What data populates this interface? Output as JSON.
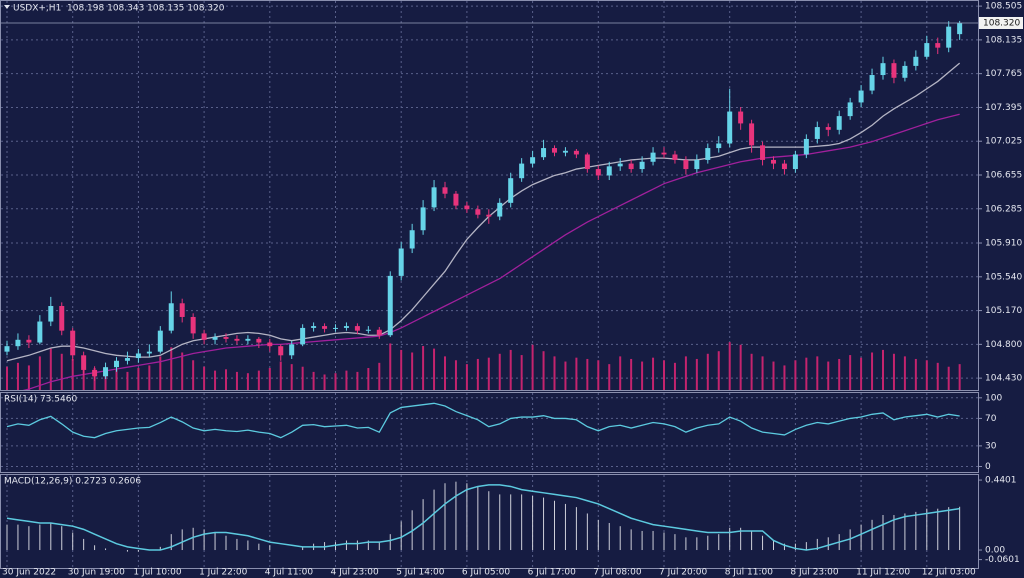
{
  "chart_data": {
    "type": "candlestick",
    "title": "USDX+,H1  108.198 108.343 108.135 108.320",
    "categories": [
      "30 Jun 2022",
      null,
      null,
      null,
      null,
      null,
      "30 Jun 19:00",
      null,
      null,
      null,
      null,
      null,
      "1 Jul 10:00",
      null,
      null,
      null,
      null,
      null,
      "1 Jul 22:00",
      null,
      null,
      null,
      null,
      null,
      "4 Jul 11:00",
      null,
      null,
      null,
      null,
      null,
      "4 Jul 23:00",
      null,
      null,
      null,
      null,
      null,
      "5 Jul 14:00",
      null,
      null,
      null,
      null,
      null,
      "6 Jul 05:00",
      null,
      null,
      null,
      null,
      null,
      "6 Jul 17:00",
      null,
      null,
      null,
      null,
      null,
      "7 Jul 08:00",
      null,
      null,
      null,
      null,
      null,
      "7 Jul 20:00",
      null,
      null,
      null,
      null,
      null,
      "8 Jul 11:00",
      null,
      null,
      null,
      null,
      null,
      "8 Jul 23:00",
      null,
      null,
      null,
      null,
      null,
      "11 Jul 12:00",
      null,
      null,
      null,
      null,
      null,
      "12 Jul 03:00",
      null,
      null,
      null
    ],
    "open": [
      104.72,
      104.78,
      104.85,
      104.82,
      105.05,
      105.22,
      104.95,
      104.68,
      104.52,
      104.45,
      104.55,
      104.62,
      104.65,
      104.7,
      104.72,
      104.95,
      105.25,
      105.1,
      104.92,
      104.85,
      104.88,
      104.86,
      104.84,
      104.86,
      104.82,
      104.78,
      104.68,
      104.8,
      104.98,
      105.0,
      104.97,
      104.98,
      105.0,
      104.95,
      104.96,
      104.9,
      105.55,
      105.85,
      106.05,
      106.3,
      106.52,
      106.45,
      106.32,
      106.28,
      106.22,
      106.2,
      106.35,
      106.62,
      106.78,
      106.85,
      106.95,
      106.9,
      106.92,
      106.88,
      106.72,
      106.65,
      106.75,
      106.78,
      106.72,
      106.8,
      106.9,
      106.88,
      106.82,
      106.72,
      106.82,
      106.95,
      107.0,
      107.35,
      107.22,
      106.98,
      106.82,
      106.78,
      106.72,
      106.88,
      107.05,
      107.18,
      107.15,
      107.3,
      107.45,
      107.58,
      107.75,
      107.88,
      107.72,
      107.85,
      107.95,
      108.1,
      108.05,
      108.198
    ],
    "high": [
      104.84,
      104.92,
      104.9,
      105.12,
      105.32,
      105.26,
      104.98,
      104.72,
      104.56,
      104.6,
      104.66,
      104.72,
      104.75,
      104.8,
      105.0,
      105.38,
      105.3,
      105.14,
      104.96,
      104.92,
      104.92,
      104.9,
      104.9,
      104.88,
      104.86,
      104.8,
      104.84,
      105.02,
      105.04,
      105.03,
      105.02,
      105.04,
      105.03,
      105.0,
      104.99,
      105.6,
      105.92,
      106.12,
      106.38,
      106.6,
      106.58,
      106.48,
      106.36,
      106.32,
      106.28,
      106.4,
      106.68,
      106.84,
      106.92,
      107.04,
      106.98,
      106.96,
      106.94,
      106.9,
      106.76,
      106.8,
      106.84,
      106.82,
      106.86,
      106.96,
      106.96,
      106.92,
      106.86,
      106.88,
      107.0,
      107.08,
      107.6,
      107.4,
      107.26,
      107.02,
      106.86,
      106.82,
      106.92,
      107.1,
      107.24,
      107.22,
      107.36,
      107.5,
      107.64,
      107.82,
      107.95,
      107.92,
      107.9,
      108.02,
      108.18,
      108.16,
      108.34,
      108.343
    ],
    "low": [
      104.68,
      104.74,
      104.76,
      104.8,
      105.0,
      104.9,
      104.62,
      104.46,
      104.4,
      104.42,
      104.5,
      104.58,
      104.6,
      104.66,
      104.7,
      104.92,
      105.04,
      104.86,
      104.8,
      104.8,
      104.82,
      104.8,
      104.8,
      104.76,
      104.72,
      104.62,
      104.64,
      104.78,
      104.94,
      104.93,
      104.94,
      104.95,
      104.91,
      104.92,
      104.86,
      104.88,
      105.5,
      105.8,
      106.0,
      106.26,
      106.4,
      106.28,
      106.24,
      106.18,
      106.12,
      106.16,
      106.3,
      106.58,
      106.74,
      106.82,
      106.86,
      106.86,
      106.84,
      106.68,
      106.6,
      106.6,
      106.7,
      106.68,
      106.68,
      106.76,
      106.84,
      106.78,
      106.66,
      106.68,
      106.78,
      106.9,
      106.96,
      107.15,
      106.9,
      106.76,
      106.72,
      106.66,
      106.68,
      106.84,
      107.0,
      107.08,
      107.1,
      107.26,
      107.4,
      107.54,
      107.7,
      107.66,
      107.68,
      107.8,
      107.92,
      107.98,
      108.0,
      108.135
    ],
    "close": [
      104.78,
      104.85,
      104.82,
      105.05,
      105.22,
      104.95,
      104.68,
      104.52,
      104.45,
      104.55,
      104.62,
      104.65,
      104.7,
      104.72,
      104.95,
      105.25,
      105.1,
      104.92,
      104.85,
      104.88,
      104.86,
      104.84,
      104.86,
      104.82,
      104.78,
      104.68,
      104.8,
      104.98,
      105.0,
      104.97,
      104.98,
      105.0,
      104.95,
      104.96,
      104.9,
      105.55,
      105.85,
      106.05,
      106.3,
      106.52,
      106.45,
      106.32,
      106.28,
      106.22,
      106.2,
      106.35,
      106.62,
      106.78,
      106.85,
      106.95,
      106.9,
      106.92,
      106.88,
      106.72,
      106.65,
      106.75,
      106.78,
      106.72,
      106.8,
      106.9,
      106.88,
      106.82,
      106.72,
      106.82,
      106.95,
      107.0,
      107.35,
      107.22,
      106.98,
      106.82,
      106.78,
      106.72,
      106.88,
      107.05,
      107.18,
      107.15,
      107.3,
      107.45,
      107.58,
      107.75,
      107.88,
      107.72,
      107.85,
      107.95,
      108.1,
      108.05,
      108.28,
      108.32
    ],
    "up_color": "#66d4e8",
    "down_color": "#e8347c",
    "ylim": [
      104.3,
      108.55
    ],
    "yticks": [
      108.505,
      108.135,
      107.765,
      107.395,
      107.025,
      106.655,
      106.285,
      {
        "value": 105.91,
        "label": "105.910"
      },
      {
        "value": 105.54,
        "label": "105.540"
      },
      {
        "value": 105.17,
        "label": "105.170"
      },
      {
        "value": 104.8,
        "label": "104.800"
      },
      {
        "value": 104.43,
        "label": "104.430"
      }
    ],
    "grid": true,
    "last_price": {
      "value": 108.32,
      "label": "108.320"
    },
    "ma_lines": [
      {
        "color": "#b4b4c4",
        "values": [
          104.62,
          104.65,
          104.68,
          104.72,
          104.76,
          104.78,
          104.78,
          104.76,
          104.73,
          104.7,
          104.68,
          104.67,
          104.66,
          104.66,
          104.68,
          104.74,
          104.8,
          104.84,
          104.86,
          104.88,
          104.9,
          104.92,
          104.93,
          104.92,
          104.9,
          104.86,
          104.84,
          104.86,
          104.88,
          104.9,
          104.92,
          104.93,
          104.92,
          104.9,
          104.9,
          104.96,
          105.06,
          105.18,
          105.32,
          105.46,
          105.6,
          105.78,
          105.95,
          106.08,
          106.2,
          106.3,
          106.4,
          106.48,
          106.55,
          106.6,
          106.65,
          106.68,
          106.72,
          106.74,
          106.76,
          106.78,
          106.8,
          106.82,
          106.83,
          106.84,
          106.84,
          106.83,
          106.82,
          106.82,
          106.84,
          106.86,
          106.9,
          106.94,
          106.96,
          106.96,
          106.96,
          106.96,
          106.96,
          106.96,
          106.97,
          106.98,
          107.0,
          107.05,
          107.12,
          107.2,
          107.3,
          107.38,
          107.45,
          107.52,
          107.6,
          107.68,
          107.78,
          107.88
        ]
      },
      {
        "color": "#a0209c",
        "values": [
          104.25,
          104.28,
          104.31,
          104.35,
          104.39,
          104.42,
          104.45,
          104.47,
          104.49,
          104.51,
          104.53,
          104.55,
          104.57,
          104.59,
          104.61,
          104.64,
          104.67,
          104.7,
          104.72,
          104.74,
          104.76,
          104.77,
          104.78,
          104.79,
          104.8,
          104.8,
          104.81,
          104.82,
          104.83,
          104.84,
          104.85,
          104.86,
          104.87,
          104.88,
          104.89,
          104.93,
          104.98,
          105.04,
          105.1,
          105.16,
          105.22,
          105.28,
          105.34,
          105.4,
          105.46,
          105.52,
          105.6,
          105.68,
          105.76,
          105.84,
          105.92,
          106.0,
          106.07,
          106.14,
          106.2,
          106.26,
          106.32,
          106.38,
          106.44,
          106.5,
          106.56,
          106.6,
          106.64,
          106.68,
          106.71,
          106.74,
          106.77,
          106.8,
          106.82,
          106.84,
          106.85,
          106.86,
          106.87,
          106.88,
          106.9,
          106.92,
          106.94,
          106.96,
          106.99,
          107.02,
          107.06,
          107.1,
          107.14,
          107.18,
          107.22,
          107.26,
          107.29,
          107.32
        ]
      }
    ],
    "y2lim": [
      0,
      30000
    ],
    "volume": {
      "axis": "y2",
      "color": "#c4246e",
      "values": [
        1800,
        2100,
        1900,
        2600,
        3200,
        2800,
        2400,
        2000,
        1700,
        1500,
        1600,
        1400,
        1700,
        1900,
        2600,
        3300,
        2900,
        2300,
        1800,
        1500,
        1600,
        1400,
        1300,
        1500,
        1700,
        2200,
        2000,
        1800,
        1400,
        1200,
        1300,
        1500,
        1400,
        1700,
        2100,
        3600,
        3100,
        2900,
        3400,
        3200,
        2600,
        2300,
        2000,
        2400,
        2500,
        2800,
        3100,
        2700,
        3500,
        3000,
        2600,
        2200,
        2500,
        2400,
        2300,
        2000,
        2600,
        2400,
        2200,
        2500,
        2300,
        2100,
        2600,
        2400,
        2800,
        3000,
        3700,
        3500,
        2800,
        2600,
        2200,
        1900,
        2300,
        2500,
        2600,
        2200,
        2400,
        2700,
        2500,
        2900,
        3100,
        2800,
        2600,
        2400,
        2300,
        2100,
        1800,
        2000
      ]
    },
    "rsi": {
      "title": "RSI(14) 73.5460",
      "ylim": [
        -8,
        107
      ],
      "yticks": [
        100,
        70,
        30,
        0
      ],
      "color": "#5ccadf",
      "values": [
        58,
        62,
        60,
        68,
        73,
        62,
        50,
        44,
        42,
        48,
        52,
        54,
        56,
        57,
        64,
        72,
        65,
        56,
        52,
        54,
        52,
        51,
        53,
        50,
        48,
        42,
        50,
        60,
        61,
        58,
        59,
        60,
        56,
        57,
        50,
        78,
        86,
        88,
        90,
        92,
        88,
        80,
        74,
        68,
        58,
        62,
        70,
        72,
        72,
        74,
        70,
        70,
        68,
        58,
        52,
        58,
        60,
        56,
        60,
        64,
        62,
        58,
        50,
        56,
        60,
        62,
        72,
        66,
        56,
        50,
        48,
        46,
        54,
        60,
        64,
        62,
        66,
        70,
        72,
        76,
        78,
        68,
        72,
        74,
        76,
        72,
        76,
        73.546
      ]
    },
    "macd": {
      "title": "MACD(12,26,9) 0.2723 0.2606",
      "ylim": [
        -0.113,
        0.472
      ],
      "yticks": [
        0.4401,
        {
          "value": 0,
          "label": "0.00"
        },
        -0.0601
      ],
      "histogram": {
        "color": "#cfd0da",
        "values": [
          0.16,
          0.16,
          0.15,
          0.16,
          0.17,
          0.15,
          0.11,
          0.07,
          0.03,
          0.01,
          0,
          -0.01,
          -0.01,
          0,
          0.02,
          0.1,
          0.13,
          0.14,
          0.13,
          0.11,
          0.09,
          0.07,
          0.06,
          0.04,
          0.03,
          0,
          0,
          0.02,
          0.04,
          0.05,
          0.05,
          0.06,
          0.06,
          0.06,
          0.05,
          0.1,
          0.18,
          0.25,
          0.32,
          0.38,
          0.42,
          0.43,
          0.42,
          0.4,
          0.37,
          0.35,
          0.35,
          0.35,
          0.34,
          0.33,
          0.31,
          0.29,
          0.27,
          0.23,
          0.19,
          0.17,
          0.15,
          0.13,
          0.12,
          0.12,
          0.11,
          0.1,
          0.08,
          0.08,
          0.09,
          0.1,
          0.14,
          0.14,
          0.12,
          0.09,
          0.06,
          0.04,
          0.04,
          0.05,
          0.07,
          0.08,
          0.1,
          0.13,
          0.16,
          0.19,
          0.22,
          0.22,
          0.23,
          0.24,
          0.26,
          0.26,
          0.27,
          0.2723
        ]
      },
      "signal": {
        "color": "#5ccadf",
        "values": [
          0.2,
          0.19,
          0.18,
          0.17,
          0.17,
          0.16,
          0.15,
          0.13,
          0.1,
          0.07,
          0.04,
          0.02,
          0.01,
          0,
          0,
          0.02,
          0.05,
          0.08,
          0.1,
          0.11,
          0.11,
          0.1,
          0.09,
          0.07,
          0.05,
          0.04,
          0.03,
          0.02,
          0.02,
          0.02,
          0.03,
          0.04,
          0.04,
          0.05,
          0.05,
          0.06,
          0.08,
          0.12,
          0.17,
          0.23,
          0.29,
          0.34,
          0.38,
          0.4,
          0.41,
          0.41,
          0.4,
          0.38,
          0.37,
          0.36,
          0.35,
          0.34,
          0.33,
          0.31,
          0.29,
          0.26,
          0.23,
          0.2,
          0.18,
          0.16,
          0.15,
          0.14,
          0.13,
          0.12,
          0.11,
          0.11,
          0.11,
          0.12,
          0.12,
          0.12,
          0.06,
          0.03,
          0.01,
          0,
          0.01,
          0.03,
          0.05,
          0.07,
          0.1,
          0.13,
          0.16,
          0.19,
          0.21,
          0.22,
          0.23,
          0.24,
          0.25,
          0.2606
        ]
      }
    }
  }
}
